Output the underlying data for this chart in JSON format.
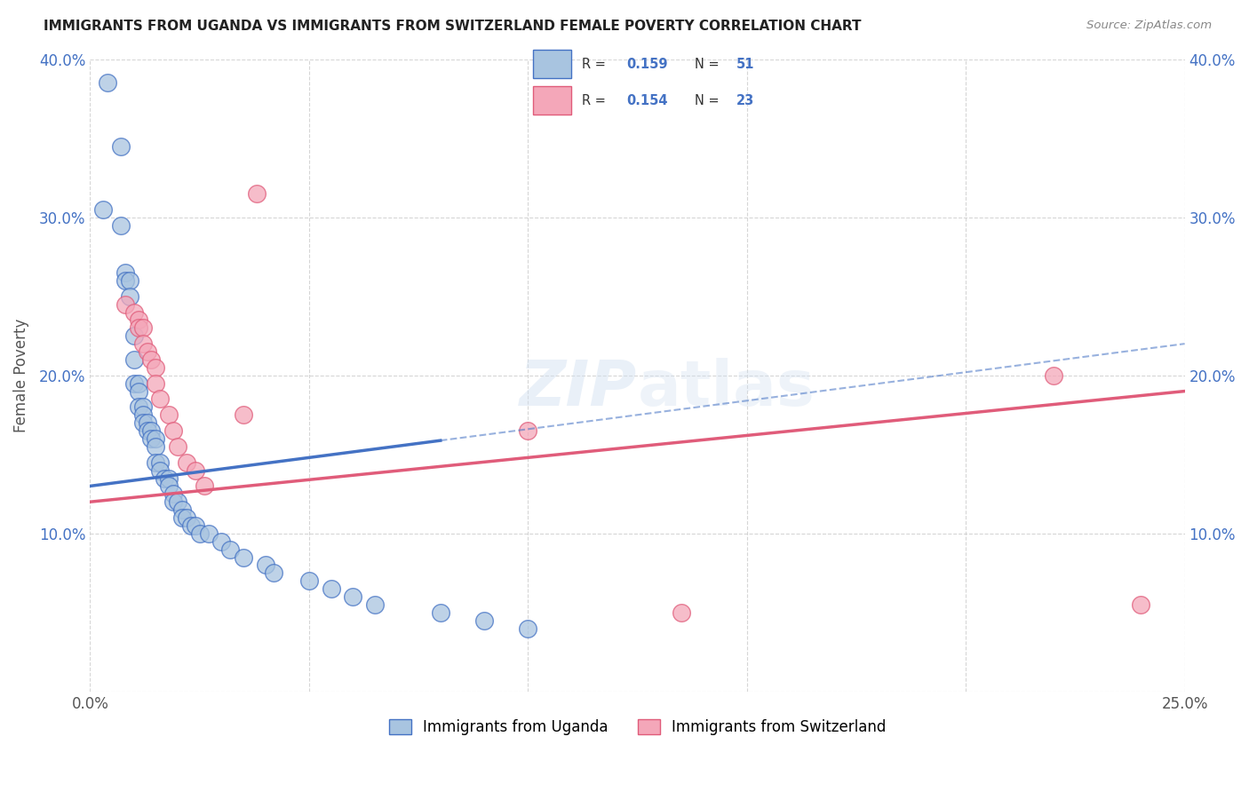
{
  "title": "IMMIGRANTS FROM UGANDA VS IMMIGRANTS FROM SWITZERLAND FEMALE POVERTY CORRELATION CHART",
  "source": "Source: ZipAtlas.com",
  "ylabel": "Female Poverty",
  "legend_label1": "Immigrants from Uganda",
  "legend_label2": "Immigrants from Switzerland",
  "r1": "0.159",
  "n1": "51",
  "r2": "0.154",
  "n2": "23",
  "xlim": [
    0.0,
    0.25
  ],
  "ylim": [
    0.0,
    0.4
  ],
  "color_uganda": "#a8c4e0",
  "color_switzerland": "#f4a7b9",
  "color_line_uganda": "#4472c4",
  "color_line_switzerland": "#e05c7a",
  "color_r_text": "#4472c4",
  "uganda_x": [
    0.004,
    0.007,
    0.007,
    0.008,
    0.008,
    0.009,
    0.009,
    0.01,
    0.01,
    0.01,
    0.011,
    0.011,
    0.011,
    0.012,
    0.012,
    0.012,
    0.013,
    0.013,
    0.014,
    0.014,
    0.015,
    0.015,
    0.015,
    0.016,
    0.016,
    0.017,
    0.018,
    0.018,
    0.019,
    0.019,
    0.02,
    0.021,
    0.021,
    0.022,
    0.023,
    0.024,
    0.025,
    0.027,
    0.03,
    0.032,
    0.035,
    0.04,
    0.042,
    0.05,
    0.055,
    0.06,
    0.065,
    0.08,
    0.09,
    0.1,
    0.003
  ],
  "uganda_y": [
    0.385,
    0.345,
    0.295,
    0.265,
    0.26,
    0.26,
    0.25,
    0.225,
    0.21,
    0.195,
    0.195,
    0.19,
    0.18,
    0.18,
    0.175,
    0.17,
    0.17,
    0.165,
    0.165,
    0.16,
    0.16,
    0.155,
    0.145,
    0.145,
    0.14,
    0.135,
    0.135,
    0.13,
    0.125,
    0.12,
    0.12,
    0.115,
    0.11,
    0.11,
    0.105,
    0.105,
    0.1,
    0.1,
    0.095,
    0.09,
    0.085,
    0.08,
    0.075,
    0.07,
    0.065,
    0.06,
    0.055,
    0.05,
    0.045,
    0.04,
    0.305
  ],
  "switzerland_x": [
    0.008,
    0.01,
    0.011,
    0.011,
    0.012,
    0.012,
    0.013,
    0.014,
    0.015,
    0.015,
    0.016,
    0.018,
    0.019,
    0.02,
    0.022,
    0.024,
    0.026,
    0.035,
    0.038,
    0.1,
    0.135,
    0.22,
    0.24
  ],
  "switzerland_y": [
    0.245,
    0.24,
    0.235,
    0.23,
    0.23,
    0.22,
    0.215,
    0.21,
    0.205,
    0.195,
    0.185,
    0.175,
    0.165,
    0.155,
    0.145,
    0.14,
    0.13,
    0.175,
    0.315,
    0.165,
    0.05,
    0.2,
    0.055
  ]
}
